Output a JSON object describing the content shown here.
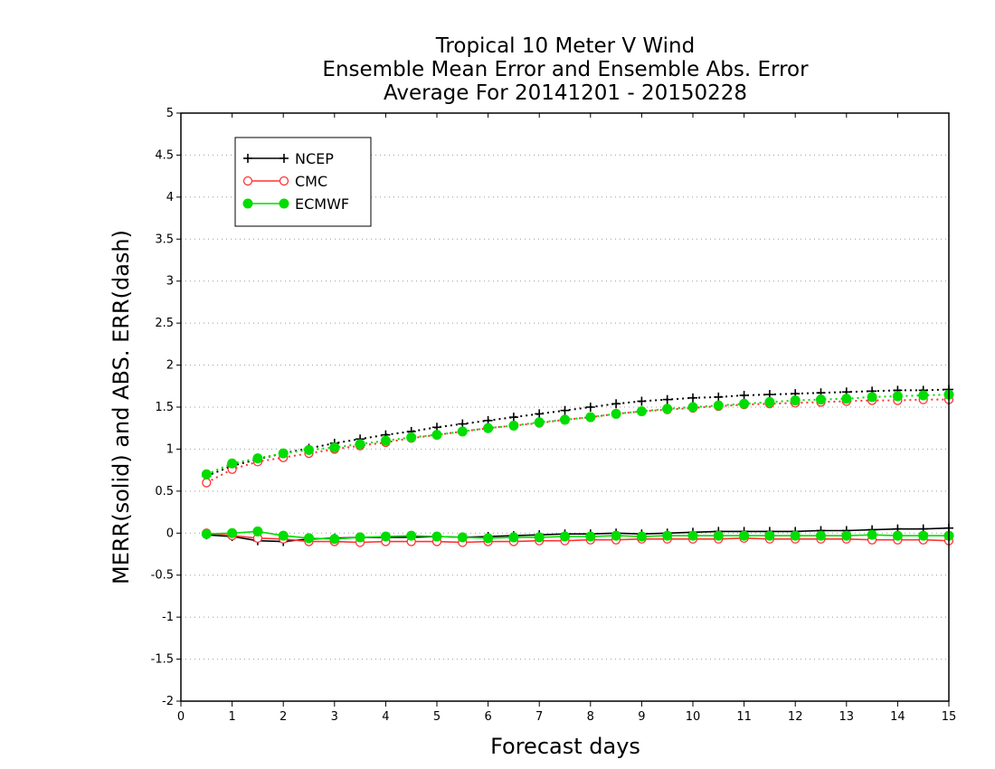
{
  "chart_data": {
    "type": "line",
    "title_lines": [
      "Tropical 10 Meter V Wind",
      "Ensemble Mean Error and Ensemble Abs. Error",
      "Average For 20141201 - 20150228"
    ],
    "xlabel": "Forecast days",
    "ylabel": "MERR(solid) and ABS. ERR(dash)",
    "xlim": [
      0,
      15
    ],
    "ylim": [
      -2,
      5
    ],
    "x_ticks": [
      0,
      1,
      2,
      3,
      4,
      5,
      6,
      7,
      8,
      9,
      10,
      11,
      12,
      13,
      14,
      15
    ],
    "y_ticks": [
      -2,
      -1.5,
      -1,
      -0.5,
      0,
      0.5,
      1,
      1.5,
      2,
      2.5,
      3,
      3.5,
      4,
      4.5,
      5
    ],
    "y_tick_labels": [
      "-2",
      "-1.5",
      "-1",
      "-0.5",
      "0",
      "0.5",
      "1",
      "1.5",
      "2",
      "2.5",
      "3",
      "3.5",
      "4",
      "4.5",
      "5"
    ],
    "grid": "horizontal dotted",
    "legend_position": "top-left",
    "x": [
      0.5,
      1,
      1.5,
      2,
      2.5,
      3,
      3.5,
      4,
      4.5,
      5,
      5.5,
      6,
      6.5,
      7,
      7.5,
      8,
      8.5,
      9,
      9.5,
      10,
      10.5,
      11,
      11.5,
      12,
      12.5,
      13,
      13.5,
      14,
      14.5,
      15
    ],
    "series": [
      {
        "name": "NCEP",
        "color": "#000000",
        "marker": "plus",
        "mean_error": [
          -0.02,
          -0.04,
          -0.09,
          -0.1,
          -0.07,
          -0.06,
          -0.05,
          -0.05,
          -0.05,
          -0.04,
          -0.05,
          -0.04,
          -0.03,
          -0.02,
          -0.01,
          -0.01,
          0.0,
          -0.01,
          0.0,
          0.01,
          0.02,
          0.02,
          0.02,
          0.02,
          0.03,
          0.03,
          0.04,
          0.05,
          0.05,
          0.06
        ],
        "abs_error": [
          0.68,
          0.8,
          0.88,
          0.95,
          1.01,
          1.07,
          1.12,
          1.17,
          1.21,
          1.26,
          1.3,
          1.34,
          1.38,
          1.42,
          1.46,
          1.5,
          1.54,
          1.57,
          1.59,
          1.61,
          1.62,
          1.64,
          1.65,
          1.66,
          1.67,
          1.68,
          1.69,
          1.7,
          1.7,
          1.71
        ]
      },
      {
        "name": "CMC",
        "color": "#ff3333",
        "marker": "open-circle",
        "mean_error": [
          0.0,
          -0.03,
          -0.06,
          -0.07,
          -0.1,
          -0.1,
          -0.11,
          -0.1,
          -0.1,
          -0.1,
          -0.11,
          -0.1,
          -0.1,
          -0.09,
          -0.09,
          -0.08,
          -0.08,
          -0.07,
          -0.07,
          -0.07,
          -0.07,
          -0.06,
          -0.07,
          -0.07,
          -0.07,
          -0.07,
          -0.08,
          -0.08,
          -0.08,
          -0.09
        ],
        "abs_error": [
          0.6,
          0.76,
          0.85,
          0.9,
          0.95,
          1.0,
          1.04,
          1.08,
          1.13,
          1.17,
          1.21,
          1.25,
          1.28,
          1.31,
          1.35,
          1.38,
          1.42,
          1.45,
          1.47,
          1.49,
          1.51,
          1.53,
          1.54,
          1.55,
          1.56,
          1.57,
          1.58,
          1.58,
          1.59,
          1.59
        ]
      },
      {
        "name": "ECMWF",
        "color": "#00dd00",
        "marker": "filled-circle",
        "mean_error": [
          -0.01,
          0.0,
          0.02,
          -0.03,
          -0.06,
          -0.07,
          -0.05,
          -0.04,
          -0.03,
          -0.04,
          -0.05,
          -0.06,
          -0.05,
          -0.05,
          -0.04,
          -0.04,
          -0.03,
          -0.04,
          -0.03,
          -0.03,
          -0.03,
          -0.03,
          -0.03,
          -0.03,
          -0.03,
          -0.03,
          -0.02,
          -0.03,
          -0.03,
          -0.03
        ],
        "abs_error": [
          0.7,
          0.83,
          0.89,
          0.95,
          0.99,
          1.02,
          1.06,
          1.1,
          1.14,
          1.17,
          1.21,
          1.25,
          1.28,
          1.32,
          1.35,
          1.38,
          1.42,
          1.45,
          1.48,
          1.5,
          1.52,
          1.54,
          1.56,
          1.58,
          1.59,
          1.6,
          1.62,
          1.63,
          1.64,
          1.65
        ]
      }
    ]
  }
}
